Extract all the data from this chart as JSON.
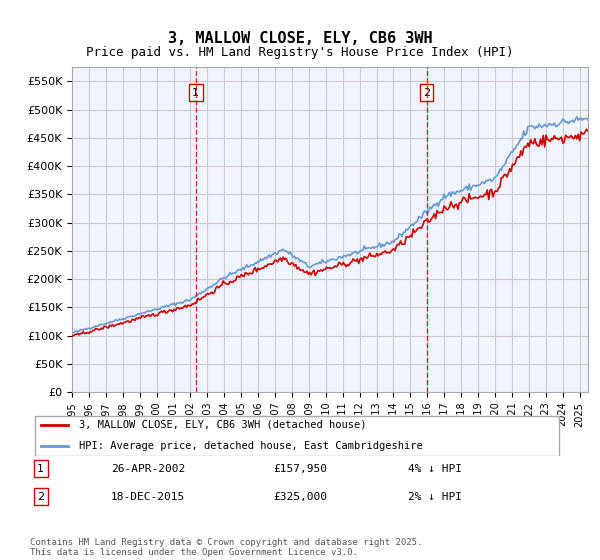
{
  "title_line1": "3, MALLOW CLOSE, ELY, CB6 3WH",
  "title_line2": "Price paid vs. HM Land Registry's House Price Index (HPI)",
  "ylabel_ticks": [
    "£0",
    "£50K",
    "£100K",
    "£150K",
    "£200K",
    "£250K",
    "£300K",
    "£350K",
    "£400K",
    "£450K",
    "£500K",
    "£550K"
  ],
  "ytick_vals": [
    0,
    50000,
    100000,
    150000,
    200000,
    250000,
    300000,
    350000,
    400000,
    450000,
    500000,
    550000
  ],
  "ylim": [
    0,
    575000
  ],
  "xlim_start": 1995.0,
  "xlim_end": 2025.5,
  "purchase1_x": 2002.31,
  "purchase1_y": 157950,
  "purchase2_x": 2015.96,
  "purchase2_y": 325000,
  "legend_line1": "3, MALLOW CLOSE, ELY, CB6 3WH (detached house)",
  "legend_line2": "HPI: Average price, detached house, East Cambridgeshire",
  "annotation1_label": "1",
  "annotation1_date": "26-APR-2002",
  "annotation1_price": "£157,950",
  "annotation1_hpi": "4% ↓ HPI",
  "annotation2_label": "2",
  "annotation2_date": "18-DEC-2015",
  "annotation2_price": "£325,000",
  "annotation2_hpi": "2% ↓ HPI",
  "footer": "Contains HM Land Registry data © Crown copyright and database right 2025.\nThis data is licensed under the Open Government Licence v3.0.",
  "line_red": "#cc0000",
  "line_blue": "#6699cc",
  "grid_color": "#cccccc",
  "bg_color": "#ffffff",
  "plot_bg": "#f0f4ff",
  "dashed_color": "#cc0000"
}
